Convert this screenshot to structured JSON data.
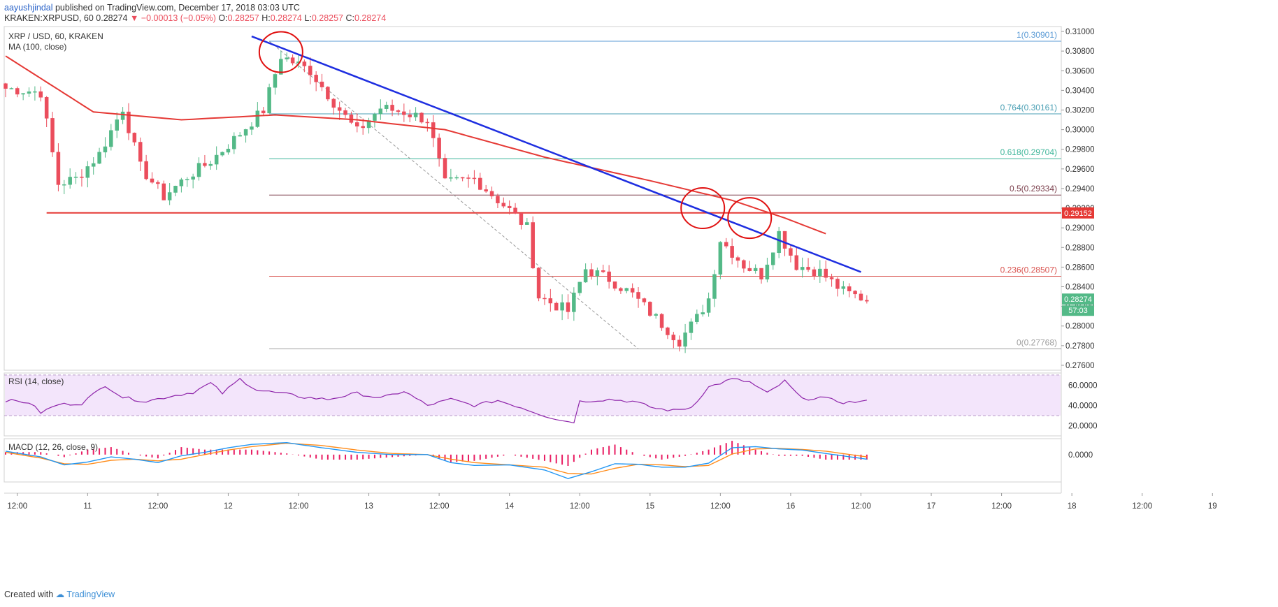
{
  "header": {
    "author": "aayushjindal",
    "published": "published on TradingView.com, December 17, 2018 03:03 UTC",
    "symbol": "KRAKEN:XRPUSD, 60",
    "last": "0.28274",
    "change": "−0.00013 (−0.05%)",
    "o_label": "O:",
    "o": "0.28257",
    "h_label": "H:",
    "h": "0.28274",
    "l_label": "L:",
    "l": "0.28257",
    "c_label": "C:",
    "c": "0.28274"
  },
  "footer": {
    "created_with": "Created with",
    "brand": "TradingView"
  },
  "colors": {
    "up": "#53b987",
    "down": "#eb4d5c",
    "ma": "#e53935",
    "trend": "#1e2ee0",
    "support": "#e53935",
    "rsi_line": "#8e24aa",
    "rsi_band": "#f3e5fb",
    "macd_line": "#2196f3",
    "signal_line": "#ff8c1a",
    "hist": "#e91e63",
    "fib_top": "#5b9bd5",
    "fib_764": "#4a9fb4",
    "fib_618": "#3fb69a",
    "fib_05": "#7b3f4c",
    "fib_0236": "#d9534f",
    "fib_0": "#9e9e9e",
    "last_price_bg": "#53b987",
    "circle": "#e01010"
  },
  "chart_data": [
    {
      "type": "candlestick",
      "title": "XRP / USD, 60, KRAKEN",
      "indicator_label": "MA (100, close)",
      "ylim": [
        0.2755,
        0.3105
      ],
      "yticks": [
        "0.31000",
        "0.30800",
        "0.30600",
        "0.30400",
        "0.30200",
        "0.30000",
        "0.29800",
        "0.29600",
        "0.29400",
        "0.29200",
        "0.29000",
        "0.28800",
        "0.28600",
        "0.28400",
        "0.28200",
        "0.28000",
        "0.27800",
        "0.27600"
      ],
      "xticks": [
        "12:00",
        "11",
        "12:00",
        "12",
        "12:00",
        "13",
        "12:00",
        "14",
        "12:00",
        "15",
        "12:00",
        "16",
        "12:00",
        "17",
        "12:00",
        "18",
        "12:00",
        "19"
      ],
      "last_price": "0.28274",
      "countdown": "57:03",
      "support_level": "0.29152",
      "fibonacci": [
        {
          "label": "1(0.30901)",
          "value": 0.30901
        },
        {
          "label": "0.764(0.30161)",
          "value": 0.30161
        },
        {
          "label": "0.618(0.29704)",
          "value": 0.29704
        },
        {
          "label": "0.5(0.29334)",
          "value": 0.29334
        },
        {
          "label": "0.236(0.28507)",
          "value": 0.28507
        },
        {
          "label": "0(0.27768)",
          "value": 0.27768
        }
      ],
      "close_anchors": [
        [
          0,
          0.3042
        ],
        [
          6,
          0.3038
        ],
        [
          9,
          0.2945
        ],
        [
          12,
          0.295
        ],
        [
          16,
          0.2975
        ],
        [
          20,
          0.3022
        ],
        [
          23,
          0.2962
        ],
        [
          27,
          0.2932
        ],
        [
          31,
          0.2952
        ],
        [
          35,
          0.2968
        ],
        [
          39,
          0.299
        ],
        [
          44,
          0.302
        ],
        [
          47,
          0.3075
        ],
        [
          52,
          0.306
        ],
        [
          56,
          0.3028
        ],
        [
          60,
          0.2998
        ],
        [
          64,
          0.3022
        ],
        [
          68,
          0.3018
        ],
        [
          72,
          0.301
        ],
        [
          75,
          0.2945
        ],
        [
          80,
          0.295
        ],
        [
          86,
          0.2918
        ],
        [
          89,
          0.29
        ],
        [
          91,
          0.283
        ],
        [
          96,
          0.2815
        ],
        [
          99,
          0.2858
        ],
        [
          103,
          0.2848
        ],
        [
          107,
          0.2832
        ],
        [
          111,
          0.2808
        ],
        [
          115,
          0.2785
        ],
        [
          118,
          0.2808
        ],
        [
          120,
          0.2828
        ],
        [
          122,
          0.2888
        ],
        [
          126,
          0.2862
        ],
        [
          129,
          0.2852
        ],
        [
          132,
          0.2895
        ],
        [
          135,
          0.2862
        ],
        [
          139,
          0.2855
        ],
        [
          143,
          0.2835
        ],
        [
          147,
          0.2827
        ]
      ],
      "ma_anchors": [
        [
          0,
          0.3075
        ],
        [
          15,
          0.3018
        ],
        [
          30,
          0.301
        ],
        [
          46,
          0.3015
        ],
        [
          60,
          0.301
        ],
        [
          75,
          0.3
        ],
        [
          92,
          0.2972
        ],
        [
          110,
          0.2948
        ],
        [
          124,
          0.2928
        ],
        [
          133,
          0.291
        ],
        [
          140,
          0.2894
        ]
      ],
      "trendline": {
        "from": [
          0.2995,
          0.3095
        ],
        "to": [
          0.2866,
          0.2855
        ]
      },
      "rsi": {
        "label": "RSI (14, close)",
        "yticks": [
          "60.0000",
          "40.0000",
          "20.0000"
        ],
        "band": [
          30,
          70
        ],
        "anchors": [
          [
            0,
            45
          ],
          [
            4,
            43
          ],
          [
            6,
            33
          ],
          [
            9,
            41
          ],
          [
            13,
            42
          ],
          [
            17,
            60
          ],
          [
            20,
            48
          ],
          [
            24,
            44
          ],
          [
            28,
            49
          ],
          [
            32,
            53
          ],
          [
            35,
            62
          ],
          [
            37,
            52
          ],
          [
            40,
            66
          ],
          [
            43,
            55
          ],
          [
            47,
            52
          ],
          [
            51,
            48
          ],
          [
            55,
            46
          ],
          [
            60,
            52
          ],
          [
            64,
            47
          ],
          [
            68,
            54
          ],
          [
            72,
            40
          ],
          [
            76,
            46
          ],
          [
            80,
            40
          ],
          [
            84,
            45
          ],
          [
            88,
            38
          ],
          [
            92,
            30
          ],
          [
            95,
            25
          ],
          [
            97,
            24
          ],
          [
            98,
            44
          ],
          [
            103,
            46
          ],
          [
            107,
            44
          ],
          [
            111,
            37
          ],
          [
            114,
            35
          ],
          [
            117,
            38
          ],
          [
            120,
            58
          ],
          [
            124,
            66
          ],
          [
            127,
            63
          ],
          [
            130,
            52
          ],
          [
            133,
            64
          ],
          [
            136,
            46
          ],
          [
            139,
            48
          ],
          [
            143,
            43
          ],
          [
            147,
            44
          ]
        ]
      },
      "macd": {
        "label": "MACD (12, 26, close, 9)",
        "yticks": [
          "0.0000"
        ],
        "ylim": [
          -0.0048,
          0.0028
        ],
        "macd_anchors": [
          [
            0,
            0.0006
          ],
          [
            6,
            -0.0004
          ],
          [
            10,
            -0.0018
          ],
          [
            14,
            -0.0013
          ],
          [
            18,
            -0.0004
          ],
          [
            22,
            -0.0008
          ],
          [
            26,
            -0.0014
          ],
          [
            30,
            -0.0002
          ],
          [
            34,
            0.0004
          ],
          [
            38,
            0.0012
          ],
          [
            42,
            0.0018
          ],
          [
            48,
            0.0021
          ],
          [
            54,
            0.0012
          ],
          [
            60,
            0.0004
          ],
          [
            66,
            0.0
          ],
          [
            72,
            0.0
          ],
          [
            76,
            -0.0014
          ],
          [
            80,
            -0.0019
          ],
          [
            86,
            -0.0018
          ],
          [
            92,
            -0.0027
          ],
          [
            96,
            -0.0042
          ],
          [
            100,
            -0.003
          ],
          [
            104,
            -0.0016
          ],
          [
            108,
            -0.0017
          ],
          [
            112,
            -0.0022
          ],
          [
            116,
            -0.0022
          ],
          [
            120,
            -0.0015
          ],
          [
            124,
            0.0012
          ],
          [
            128,
            0.0014
          ],
          [
            132,
            0.001
          ],
          [
            136,
            0.0008
          ],
          [
            140,
            0.0002
          ],
          [
            147,
            -0.0008
          ]
        ],
        "signal_anchors": [
          [
            0,
            0.0004
          ],
          [
            6,
            -0.0006
          ],
          [
            10,
            -0.0016
          ],
          [
            14,
            -0.0017
          ],
          [
            18,
            -0.001
          ],
          [
            22,
            -0.0008
          ],
          [
            26,
            -0.0011
          ],
          [
            30,
            -0.0008
          ],
          [
            34,
            0.0
          ],
          [
            38,
            0.0008
          ],
          [
            42,
            0.0014
          ],
          [
            48,
            0.002
          ],
          [
            54,
            0.0016
          ],
          [
            60,
            0.0008
          ],
          [
            66,
            0.0002
          ],
          [
            72,
            0.0
          ],
          [
            76,
            -0.0008
          ],
          [
            80,
            -0.0014
          ],
          [
            86,
            -0.0018
          ],
          [
            92,
            -0.0022
          ],
          [
            96,
            -0.0033
          ],
          [
            100,
            -0.0034
          ],
          [
            104,
            -0.0024
          ],
          [
            108,
            -0.0017
          ],
          [
            112,
            -0.0018
          ],
          [
            116,
            -0.0021
          ],
          [
            120,
            -0.0019
          ],
          [
            124,
            0.0001
          ],
          [
            128,
            0.001
          ],
          [
            132,
            0.0011
          ],
          [
            136,
            0.0009
          ],
          [
            140,
            0.0006
          ],
          [
            147,
            -0.0004
          ]
        ]
      }
    }
  ]
}
